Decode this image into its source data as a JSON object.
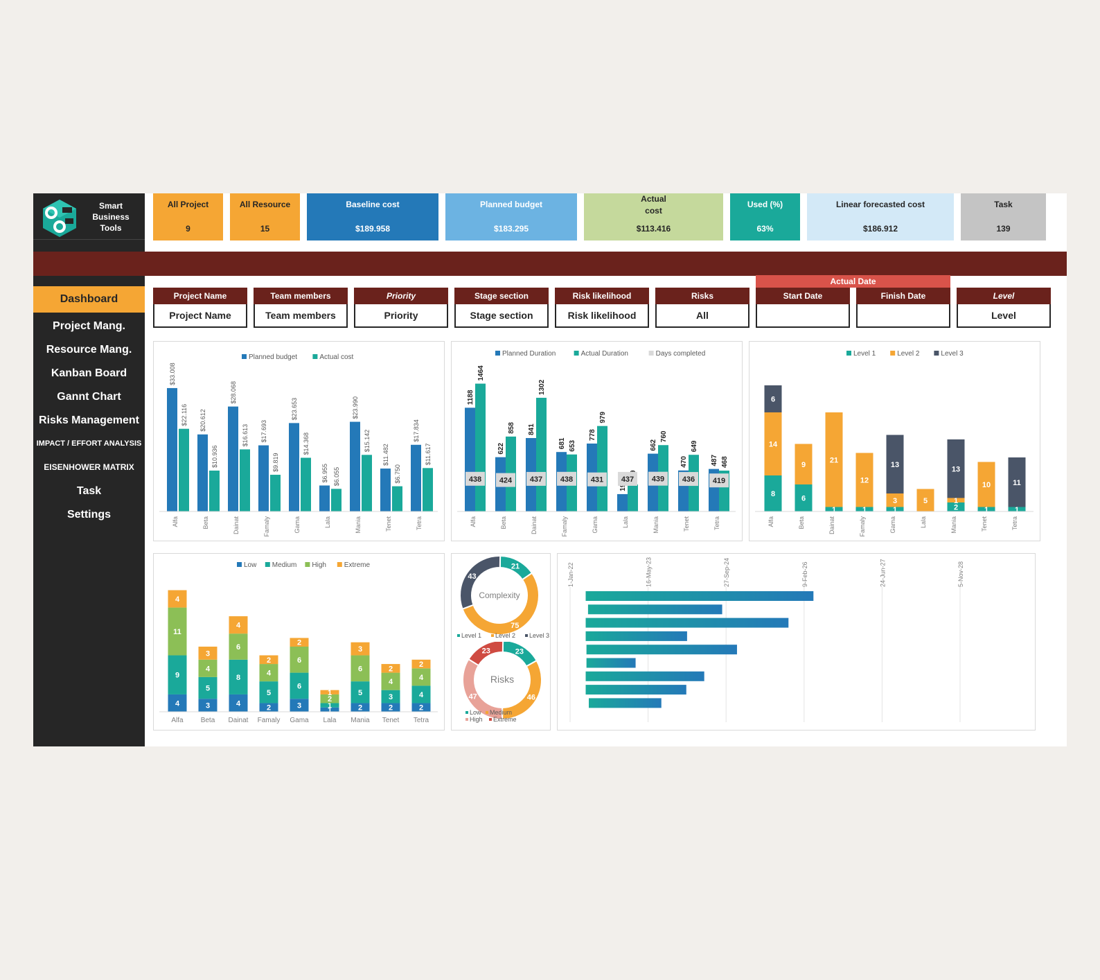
{
  "brand": {
    "name": "Smart\nBusiness\nTools"
  },
  "sidebar": {
    "items": [
      {
        "label": "Dashboard"
      },
      {
        "label": "Project Mang."
      },
      {
        "label": "Resource Mang."
      },
      {
        "label": "Kanban Board"
      },
      {
        "label": "Gannt Chart"
      },
      {
        "label": "Risks Management"
      },
      {
        "label": "IMPACT / EFFORT ANALYSIS"
      },
      {
        "label": "EISENHOWER MATRIX"
      },
      {
        "label": "Task"
      },
      {
        "label": "Settings"
      }
    ]
  },
  "kpis": [
    {
      "label": "All Project",
      "value": "9",
      "color": "#f5a634",
      "text": "#262626"
    },
    {
      "label": "All Resource",
      "value": "15",
      "color": "#f5a634",
      "text": "#262626"
    },
    {
      "label": "Baseline cost",
      "value": "$189.958",
      "color": "#2479b8",
      "text": "#ffffff"
    },
    {
      "label": "Planned budget",
      "value": "$183.295",
      "color": "#6cb3e2",
      "text": "#ffffff"
    },
    {
      "label": "Actual\ncost",
      "value": "$113.416",
      "color": "#c5d99c",
      "text": "#262626"
    },
    {
      "label": "Used (%)",
      "value": "63%",
      "color": "#1aa99a",
      "text": "#ffffff"
    },
    {
      "label": "Linear forecasted cost",
      "value": "$186.912",
      "color": "#d3e9f7",
      "text": "#262626"
    },
    {
      "label": "Task",
      "value": "139",
      "color": "#c4c4c4",
      "text": "#262626"
    }
  ],
  "filters": [
    {
      "header": "Project Name",
      "value": "Project Name",
      "italic": false
    },
    {
      "header": "Team members",
      "value": "Team members",
      "italic": false
    },
    {
      "header": "Priority",
      "value": "Priority",
      "italic": true
    },
    {
      "header": "Stage section",
      "value": "Stage section",
      "italic": false
    },
    {
      "header": "Risk likelihood",
      "value": "Risk likelihood",
      "italic": false
    },
    {
      "header": "Risks",
      "value": "All",
      "italic": false
    },
    {
      "header": "Start Date",
      "value": "",
      "italic": false
    },
    {
      "header": "Finish Date",
      "value": "",
      "italic": false
    },
    {
      "header": "Level",
      "value": "Level",
      "italic": true
    }
  ],
  "actual_date_label": "Actual Date",
  "chart_data": [
    {
      "type": "bar",
      "categories": [
        "Alfa",
        "Beta",
        "Dainat",
        "Famaly",
        "Gama",
        "Lala",
        "Mania",
        "Tenet",
        "Tetra"
      ],
      "series": [
        {
          "name": "Planned budget",
          "color": "#2479b8",
          "values": [
            33008,
            20612,
            28068,
            17693,
            23653,
            6955,
            23990,
            11482,
            17834
          ],
          "labels": [
            "$33.008",
            "$20.612",
            "$28.068",
            "$17.693",
            "$23.653",
            "$6.955",
            "$23.990",
            "$11.482",
            "$17.834"
          ]
        },
        {
          "name": "Actual cost",
          "color": "#1aa99a",
          "values": [
            22116,
            10936,
            16613,
            9819,
            14368,
            6055,
            15142,
            6750,
            11617
          ],
          "labels": [
            "$22.116",
            "$10.936",
            "$16.613",
            "$9.819",
            "$14.368",
            "$6.055",
            "$15.142",
            "$6.750",
            "$11.617"
          ]
        }
      ],
      "ylim": [
        0,
        38000
      ]
    },
    {
      "type": "bar",
      "categories": [
        "Alfa",
        "Beta",
        "Dainat",
        "Famaly",
        "Gama",
        "Lala",
        "Mania",
        "Tenet",
        "Tetra"
      ],
      "series": [
        {
          "name": "Planned Duration",
          "color": "#2479b8",
          "values": [
            1188,
            622,
            841,
            681,
            778,
            199,
            662,
            470,
            487
          ]
        },
        {
          "name": "Actual Duration",
          "color": "#1aa99a",
          "values": [
            1464,
            858,
            1302,
            653,
            979,
            309,
            760,
            649,
            468
          ]
        },
        {
          "name": "Days completed",
          "color": "#d9d9d9",
          "values": [
            438,
            424,
            437,
            438,
            431,
            437,
            439,
            436,
            419
          ]
        }
      ],
      "ylim": [
        0,
        1500
      ]
    },
    {
      "type": "bar",
      "stacked": true,
      "categories": [
        "Alfa",
        "Beta",
        "Dainat",
        "Famaly",
        "Gama",
        "Lala",
        "Mania",
        "Tenet",
        "Tetra"
      ],
      "series": [
        {
          "name": "Level 1",
          "color": "#1aa99a",
          "values": [
            8,
            6,
            1,
            1,
            1,
            0,
            2,
            1,
            1
          ]
        },
        {
          "name": "Level 2",
          "color": "#f5a634",
          "values": [
            14,
            9,
            21,
            12,
            3,
            5,
            1,
            10,
            0
          ]
        },
        {
          "name": "Level 3",
          "color": "#4a5568",
          "values": [
            6,
            0,
            0,
            0,
            13,
            0,
            13,
            0,
            11
          ]
        }
      ],
      "ylim": [
        0,
        30
      ]
    },
    {
      "type": "bar",
      "stacked": true,
      "categories": [
        "Alfa",
        "Beta",
        "Dainat",
        "Famaly",
        "Gama",
        "Lala",
        "Mania",
        "Tenet",
        "Tetra"
      ],
      "series": [
        {
          "name": "Low",
          "color": "#2479b8",
          "values": [
            4,
            3,
            4,
            2,
            3,
            1,
            2,
            2,
            2
          ]
        },
        {
          "name": "Medium",
          "color": "#1aa99a",
          "values": [
            9,
            5,
            8,
            5,
            6,
            1,
            5,
            3,
            4
          ]
        },
        {
          "name": "High",
          "color": "#8cbf56",
          "values": [
            11,
            4,
            6,
            4,
            6,
            2,
            6,
            4,
            4
          ]
        },
        {
          "name": "Extreme",
          "color": "#f5a634",
          "values": [
            4,
            3,
            4,
            2,
            2,
            1,
            3,
            2,
            2
          ]
        }
      ],
      "ylim": [
        0,
        30
      ]
    },
    {
      "type": "pie",
      "title": "Complexity",
      "slices": [
        {
          "name": "Level 1",
          "value": 21,
          "color": "#1aa99a"
        },
        {
          "name": "Level 2",
          "value": 75,
          "color": "#f5a634"
        },
        {
          "name": "Level 3",
          "value": 43,
          "color": "#4a5568"
        }
      ]
    },
    {
      "type": "pie",
      "title": "Risks",
      "slices": [
        {
          "name": "Low",
          "value": 23,
          "color": "#1aa99a"
        },
        {
          "name": "Medium",
          "value": 46,
          "color": "#f5a634"
        },
        {
          "name": "High",
          "value": 47,
          "color": "#e8a298"
        },
        {
          "name": "Extreme",
          "value": 23,
          "color": "#cf4b42"
        }
      ]
    },
    {
      "type": "bar",
      "orientation": "horizontal",
      "x_ticks": [
        "1-Jan-22",
        "16-May-23",
        "27-Sep-24",
        "9-Feb-26",
        "24-Jun-27",
        "5-Nov-28"
      ],
      "x_tick_days": [
        0,
        500,
        1000,
        1500,
        2000,
        2500
      ],
      "bars": [
        {
          "start_days": 100,
          "end_days": 1560
        },
        {
          "start_days": 115,
          "end_days": 975
        },
        {
          "start_days": 100,
          "end_days": 1400
        },
        {
          "start_days": 100,
          "end_days": 750
        },
        {
          "start_days": 105,
          "end_days": 1070
        },
        {
          "start_days": 105,
          "end_days": 420
        },
        {
          "start_days": 100,
          "end_days": 860
        },
        {
          "start_days": 100,
          "end_days": 745
        },
        {
          "start_days": 120,
          "end_days": 585
        }
      ]
    }
  ]
}
